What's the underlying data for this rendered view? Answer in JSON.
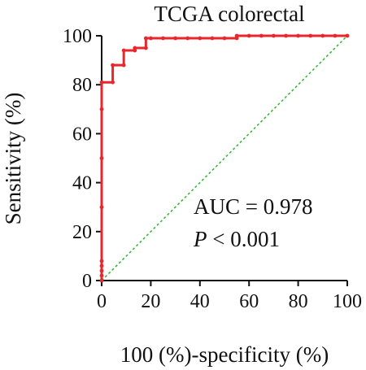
{
  "chart_data": {
    "type": "line",
    "title": "TCGA colorectal",
    "xlabel": "100 (%)-specificity (%)",
    "ylabel": "Sensitivity (%)",
    "xlim": [
      0,
      100
    ],
    "ylim": [
      0,
      100
    ],
    "x_ticks": [
      "0",
      "20",
      "40",
      "60",
      "80",
      "100"
    ],
    "y_ticks": [
      "0",
      "20",
      "40",
      "60",
      "80",
      "100"
    ],
    "grid": false,
    "colors": {
      "roc": "#e8262b",
      "reference": "#2db52d",
      "axis": "#111111"
    },
    "series": [
      {
        "x": [
          0,
          0,
          0,
          0,
          0,
          0,
          0,
          0,
          0,
          4.5,
          4.5,
          9,
          9,
          13.5,
          13.5,
          18,
          18,
          20,
          25,
          30,
          35,
          40,
          45,
          50,
          55,
          55,
          60,
          65,
          70,
          75,
          80,
          85,
          90,
          95,
          100
        ],
        "y": [
          0,
          2,
          4,
          6,
          8,
          30,
          50,
          70,
          81,
          81,
          88,
          88,
          94,
          94,
          95,
          95,
          99,
          99,
          99,
          99,
          99,
          99,
          99,
          99,
          99,
          100,
          100,
          100,
          100,
          100,
          100,
          100,
          100,
          100,
          100
        ]
      },
      {
        "x": [
          0,
          100
        ],
        "y": [
          0,
          100
        ]
      }
    ],
    "annotations": {
      "auc": "AUC = 0.978",
      "p_symbol": "P",
      "p_rest": " < 0.001"
    }
  }
}
